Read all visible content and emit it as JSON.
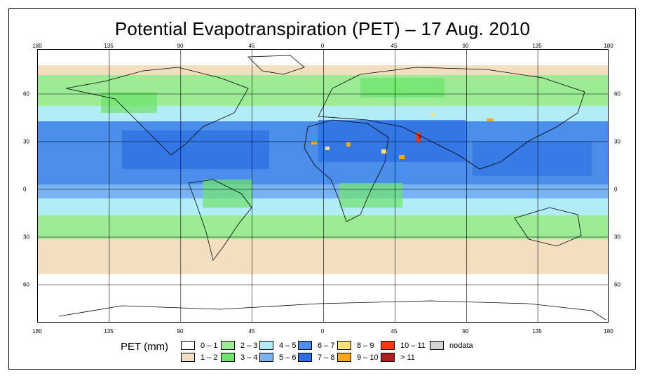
{
  "title": "Potential Evapotranspiration (PET) – 17 Aug. 2010",
  "axes": {
    "lon_ticks": [
      "180",
      "135",
      "90",
      "45",
      "0",
      "45",
      "90",
      "135",
      "180"
    ],
    "lat_ticks": [
      "60",
      "30",
      "0",
      "30",
      "60"
    ]
  },
  "legend": {
    "title": "PET (mm)",
    "items": [
      {
        "label": "0 – 1",
        "color": "#ffffff"
      },
      {
        "label": "1 – 2",
        "color": "#f2dfc0"
      },
      {
        "label": "2 – 3",
        "color": "#9ceb95"
      },
      {
        "label": "3 – 4",
        "color": "#6ee46c"
      },
      {
        "label": "4 – 5",
        "color": "#b2ecf6"
      },
      {
        "label": "5 – 6",
        "color": "#78b4f2"
      },
      {
        "label": "6 – 7",
        "color": "#4a8eea"
      },
      {
        "label": "7 – 8",
        "color": "#2c6fe3"
      },
      {
        "label": "8 – 9",
        "color": "#fce07a"
      },
      {
        "label": "9 – 10",
        "color": "#fca61a"
      },
      {
        "label": "10 – 11",
        "color": "#f43a0e"
      },
      {
        "label": "> 11",
        "color": "#b11e1e"
      },
      {
        "label": "nodata",
        "color": "#d3d3d3"
      }
    ]
  }
}
